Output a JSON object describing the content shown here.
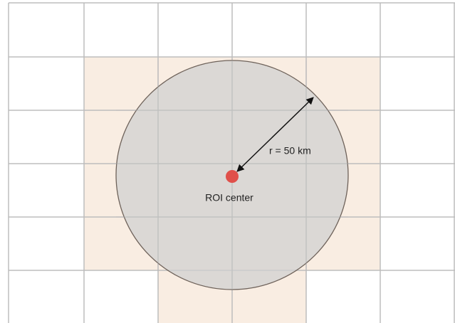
{
  "labels": {
    "radius": "r = 50 km",
    "center": "ROI center"
  }
}
